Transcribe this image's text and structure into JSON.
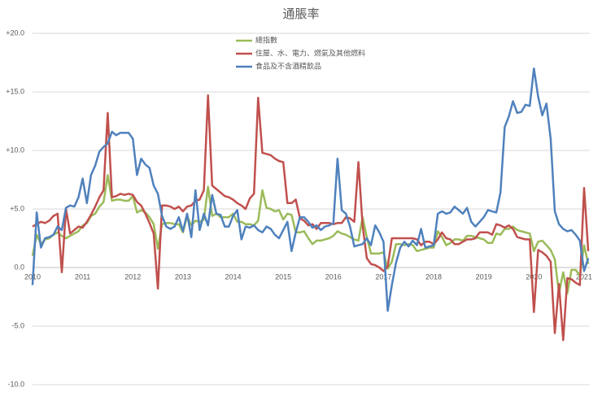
{
  "chart_data": {
    "type": "line",
    "title": "通脹率",
    "categories": [
      "2010",
      null,
      null,
      null,
      null,
      null,
      null,
      null,
      null,
      null,
      null,
      null,
      "2011",
      null,
      null,
      null,
      null,
      null,
      null,
      null,
      null,
      null,
      null,
      null,
      "2012",
      null,
      null,
      null,
      null,
      null,
      null,
      null,
      null,
      null,
      null,
      null,
      "2013",
      null,
      null,
      null,
      null,
      null,
      null,
      null,
      null,
      null,
      null,
      null,
      "2014",
      null,
      null,
      null,
      null,
      null,
      null,
      null,
      null,
      null,
      null,
      null,
      "2015",
      null,
      null,
      null,
      null,
      null,
      null,
      null,
      null,
      null,
      null,
      null,
      "2016",
      null,
      null,
      null,
      null,
      null,
      null,
      null,
      null,
      null,
      null,
      null,
      "2017",
      null,
      null,
      null,
      null,
      null,
      null,
      null,
      null,
      null,
      null,
      null,
      "2018",
      null,
      null,
      null,
      null,
      null,
      null,
      null,
      null,
      null,
      null,
      null,
      "2019",
      null,
      null,
      null,
      null,
      null,
      null,
      null,
      null,
      null,
      null,
      null,
      "2020",
      null,
      null,
      null,
      null,
      null,
      null,
      null,
      null,
      null,
      null,
      null,
      "2021",
      null
    ],
    "series": [
      {
        "name": "總指數",
        "color": "#9bbb59",
        "values": [
          1.0,
          2.8,
          2.0,
          2.4,
          2.5,
          2.8,
          3.0,
          2.7,
          2.5,
          2.7,
          2.9,
          3.1,
          3.6,
          3.8,
          4.4,
          4.6,
          5.2,
          5.6,
          7.9,
          5.7,
          5.8,
          5.8,
          5.7,
          5.7,
          6.1,
          4.7,
          4.9,
          4.7,
          4.3,
          3.7,
          1.6,
          3.7,
          3.8,
          3.8,
          3.7,
          3.7,
          3.0,
          4.4,
          3.6,
          4.0,
          3.9,
          4.1,
          6.9,
          4.4,
          4.6,
          4.3,
          4.3,
          4.3,
          4.6,
          3.9,
          3.9,
          3.7,
          3.7,
          3.6,
          4.0,
          6.6,
          5.1,
          5.0,
          4.8,
          4.9,
          4.1,
          4.6,
          4.5,
          3.0,
          3.0,
          3.1,
          2.5,
          2.0,
          2.3,
          2.3,
          2.4,
          2.5,
          2.7,
          3.1,
          2.9,
          2.8,
          2.6,
          2.4,
          2.3,
          4.3,
          2.6,
          1.2,
          1.2,
          1.2,
          1.3,
          -0.1,
          0.5,
          2.0,
          2.0,
          1.9,
          2.0,
          1.9,
          1.4,
          1.5,
          1.6,
          1.7,
          1.7,
          3.1,
          2.6,
          1.9,
          2.1,
          2.4,
          2.4,
          2.3,
          2.7,
          2.7,
          2.6,
          2.5,
          2.4,
          2.1,
          2.1,
          2.9,
          2.8,
          3.3,
          3.3,
          3.5,
          3.2,
          3.1,
          3.0,
          2.9,
          1.4,
          2.2,
          2.3,
          1.9,
          1.5,
          0.7,
          -2.2,
          -0.4,
          -2.2,
          -0.2,
          -0.2,
          -0.7,
          1.9,
          0.3
        ]
      },
      {
        "name": "住屋、水、電力、燃氣及其他燃料",
        "color": "#c0504d",
        "values": [
          3.5,
          3.7,
          3.9,
          3.8,
          4.0,
          4.4,
          4.6,
          -0.4,
          5.0,
          2.9,
          3.2,
          3.5,
          3.4,
          3.9,
          4.5,
          5.2,
          6.0,
          6.6,
          13.2,
          6.0,
          6.1,
          6.3,
          6.2,
          6.3,
          6.2,
          5.6,
          5.3,
          4.6,
          3.8,
          2.9,
          -1.8,
          5.3,
          5.3,
          5.2,
          5.0,
          5.2,
          4.8,
          5.2,
          5.3,
          5.7,
          5.8,
          6.6,
          14.7,
          7.0,
          6.7,
          6.4,
          6.1,
          6.0,
          5.8,
          5.5,
          5.3,
          5.0,
          5.9,
          6.3,
          14.5,
          9.8,
          9.7,
          9.6,
          9.3,
          9.1,
          9.0,
          5.5,
          5.5,
          5.8,
          4.2,
          4.0,
          3.6,
          3.7,
          3.3,
          3.8,
          3.8,
          3.8,
          3.7,
          3.8,
          3.8,
          4.3,
          4.2,
          3.9,
          9.0,
          3.6,
          0.8,
          0.3,
          0.2,
          0.0,
          -0.3,
          0.1,
          2.5,
          2.5,
          2.5,
          2.5,
          2.5,
          2.5,
          2.4,
          1.9,
          2.2,
          2.2,
          2.0,
          2.4,
          3.0,
          2.5,
          2.4,
          2.0,
          2.0,
          2.2,
          2.4,
          2.4,
          2.5,
          3.0,
          3.0,
          3.0,
          2.8,
          3.7,
          3.6,
          3.4,
          3.6,
          3.3,
          2.6,
          2.5,
          2.4,
          2.4,
          -3.8,
          1.5,
          1.3,
          1.0,
          0.5,
          -5.6,
          -1.4,
          -6.2,
          -0.9,
          -1.0,
          -1.3,
          -1.5,
          6.8,
          1.4
        ]
      },
      {
        "name": "食品及不含酒精飲品",
        "color": "#4f81bd",
        "values": [
          -1.5,
          4.7,
          1.7,
          2.5,
          2.6,
          2.8,
          3.5,
          3.2,
          5.1,
          5.3,
          5.2,
          6.0,
          7.6,
          5.5,
          7.9,
          8.7,
          9.9,
          10.3,
          10.6,
          11.6,
          11.3,
          11.5,
          11.5,
          11.5,
          11.0,
          7.9,
          9.3,
          8.8,
          8.5,
          7.0,
          6.3,
          4.4,
          3.5,
          3.3,
          3.5,
          4.3,
          3.1,
          4.6,
          2.6,
          6.6,
          3.2,
          4.6,
          3.6,
          6.2,
          4.6,
          4.5,
          3.5,
          3.5,
          4.4,
          4.9,
          2.4,
          3.5,
          3.4,
          3.6,
          3.2,
          3.0,
          3.5,
          3.3,
          2.8,
          2.5,
          3.2,
          3.9,
          1.4,
          3.0,
          4.3,
          4.3,
          3.9,
          3.4,
          3.6,
          3.2,
          3.5,
          3.6,
          3.8,
          9.3,
          4.9,
          4.6,
          3.5,
          1.8,
          1.9,
          2.0,
          2.5,
          1.9,
          3.6,
          3.0,
          2.2,
          -3.7,
          -1.5,
          0.4,
          1.7,
          2.2,
          1.8,
          2.3,
          1.9,
          3.3,
          1.7,
          1.8,
          1.9,
          4.6,
          4.8,
          4.6,
          4.7,
          5.2,
          4.9,
          4.6,
          5.1,
          3.9,
          3.5,
          3.9,
          4.3,
          4.9,
          4.8,
          4.7,
          6.4,
          12.0,
          12.9,
          14.2,
          13.2,
          13.3,
          13.9,
          13.8,
          17.0,
          14.6,
          13.0,
          14.0,
          11.0,
          4.8,
          3.7,
          3.3,
          3.1,
          3.2,
          2.8,
          2.3,
          -0.3,
          0.8
        ]
      }
    ],
    "ylim": [
      -10,
      20
    ],
    "yticks": [
      {
        "value": -10,
        "label": "-10.0"
      },
      {
        "value": -5,
        "label": "-5.0"
      },
      {
        "value": 0,
        "label": "0.0"
      },
      {
        "value": 5,
        "label": "+5.0"
      },
      {
        "value": 10,
        "label": "+10.0"
      },
      {
        "value": 15,
        "label": "+15.0"
      },
      {
        "value": 20,
        "label": "+20.0"
      }
    ],
    "grid": true,
    "legend": "top"
  }
}
